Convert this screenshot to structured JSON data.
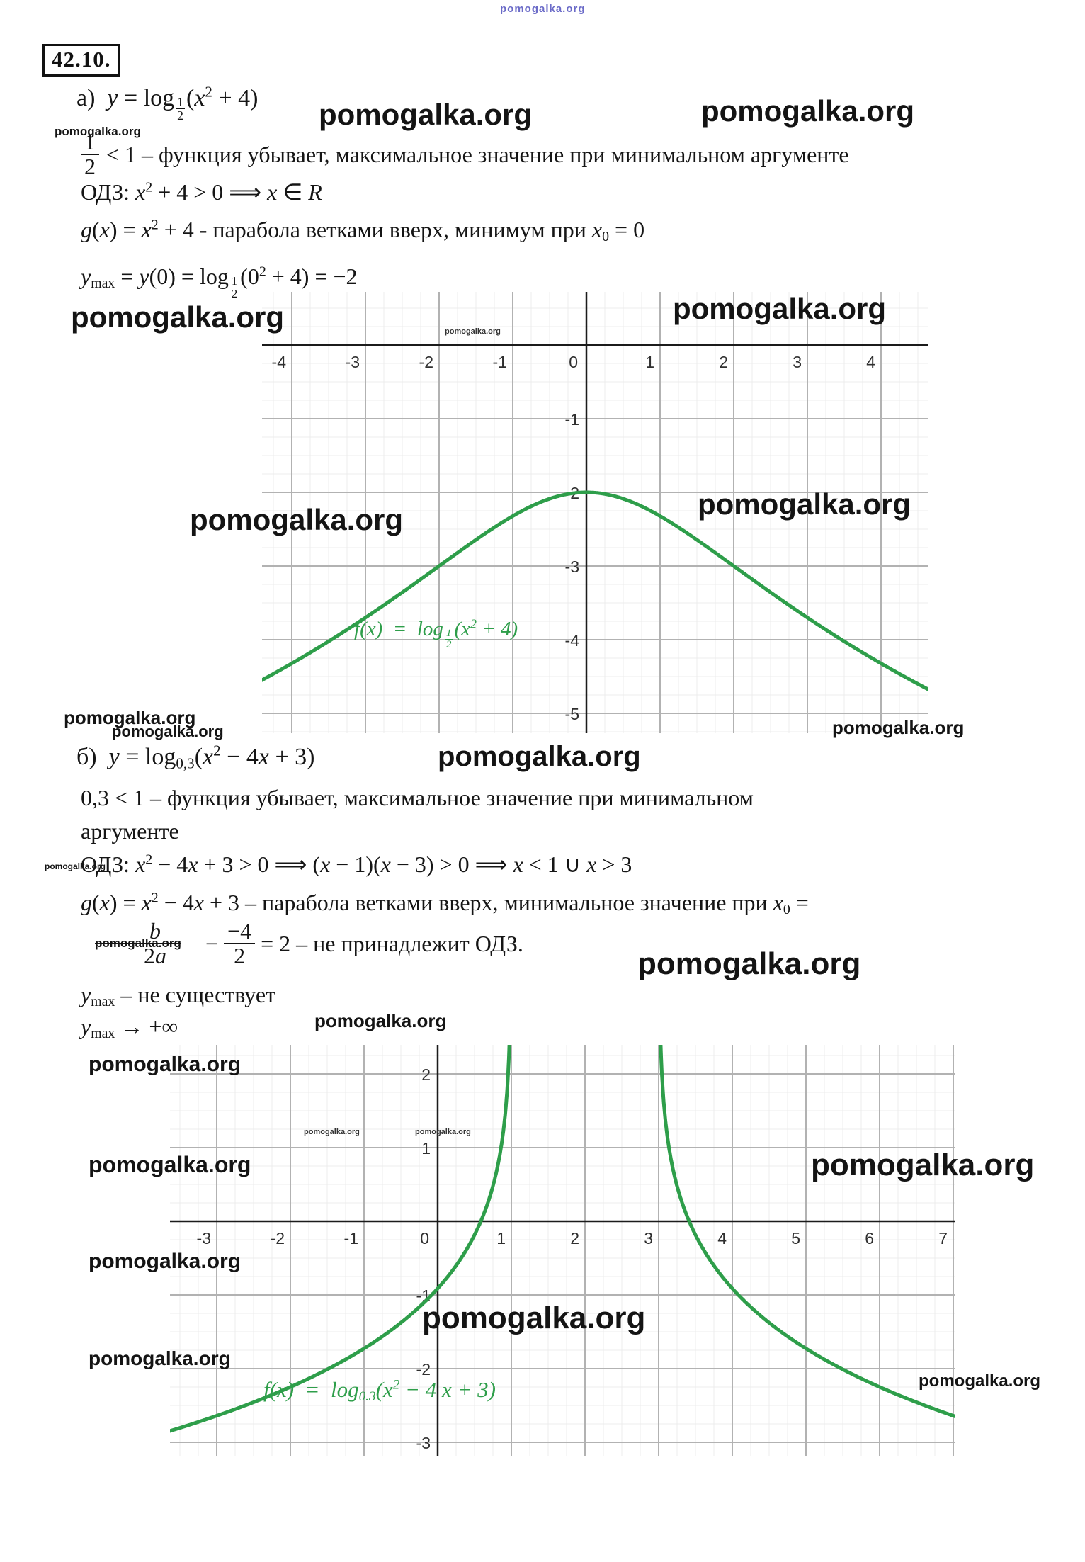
{
  "watermark": {
    "text": "pomogalka.org"
  },
  "header": {
    "problem_number": "42.10."
  },
  "section_a": {
    "equation_html": "а)&nbsp;&nbsp;<i>y</i> = log<span class=\"frac fsub\"><span class=\"top\">1</span><span class=\"bot\">2</span></span>(<i>x</i><sup>2</sup> + 4)",
    "condition_html": "&lt; 1 – функция убывает, максимальное значение при минимальном аргументе",
    "condition_frac": {
      "numerator": "1",
      "denominator": "2"
    },
    "odz_html": "ОДЗ: <i>x</i><sup>2</sup> + 4 &gt; 0 ⟹ <i>x</i> ∈ <i>R</i>",
    "g_html": "<i>g</i>(<i>x</i>) = <i>x</i><sup>2</sup> + 4 - парабола ветками вверх, минимум при <i>x</i><sub>0</sub> = 0",
    "ymax_html": "<i>y</i><sub>max</sub> = <i>y</i>(0) = log<span class=\"frac fsub\"><span class=\"top\">1</span><span class=\"bot\">2</span></span>(0<sup>2</sup> + 4) = −2"
  },
  "section_b": {
    "equation_html": "б)&nbsp;&nbsp;<i>y</i> = log<sub>0,3</sub>(<i>x</i><sup>2</sup> − 4<i>x</i> + 3)",
    "condition1_html": "0,3 &lt; 1 – функция убывает, максимальное значение при минимальном",
    "condition2_html": "аргументе",
    "odz_html": "ОДЗ: <i>x</i><sup>2</sup> − 4<i>x</i> + 3 &gt; 0 ⟹ (<i>x</i> − 1)(<i>x</i> − 3) &gt; 0 ⟹ <i>x</i> &lt; 1 ∪ <i>x</i> &gt; 3",
    "g_html": "<i>g</i>(<i>x</i>) = <i>x</i><sup>2</sup> − 4<i>x</i> + 3 – парабола ветками вверх, минимальное значение при <i>x</i><sub>0</sub> =",
    "x0_frac_html": "<span class=\"frac\"><span class=\"top\"><i>b</i></span><span class=\"bot\">2<i>a</i></span></span>",
    "x0_rest_html": "−&nbsp;<span class=\"frac\"><span class=\"top\">−4</span><span class=\"bot\">2</span></span>&nbsp;= 2 – не принадлежит ОДЗ.",
    "ymax1_html": "<i>y</i><sub>max</sub> – не существует",
    "ymax2_html": "<i>y</i><sub>max</sub> → +∞"
  },
  "chart_data": [
    {
      "type": "line",
      "title": "f(x) = log_(1/2)(x^2 + 4)",
      "label_html": "<i>f</i>(<i>x</i>) &nbsp;=&nbsp; log<span class=\"frac fsub\"><span class=\"top\">1</span><span class=\"bot\">2</span></span>(<i>x</i><sup>2</sup> + 4)",
      "color": "#2e9e4a",
      "grid": true,
      "x_range": [
        -4.4,
        4.64
      ],
      "y_range": [
        -5.27,
        0.72
      ],
      "x_ticks": [
        -4,
        -3,
        -2,
        -1,
        0,
        1,
        2,
        3,
        4
      ],
      "y_ticks": [
        -1,
        -2,
        -3,
        -4,
        -5
      ],
      "maximum_point": [
        0,
        -2
      ],
      "series": [
        {
          "name": "log_{1/2}(x^2+4)",
          "log_base": 0.5,
          "quad": [
            1,
            0,
            4
          ],
          "x_from": -4.42,
          "x_to": 4.64
        }
      ]
    },
    {
      "type": "line",
      "title": "f(x) = log_0.3(x^2 - 4x + 3)",
      "label_html": "<i>f</i>(<i>x</i>) &nbsp;=&nbsp; log<sub>0.3</sub>(<i>x</i><sup>2</sup> − 4 <i>x</i> + 3)",
      "color": "#2e9e4a",
      "grid": true,
      "x_range": [
        -3.63,
        7.02
      ],
      "y_range": [
        -3.18,
        2.39
      ],
      "x_ticks": [
        -3,
        -2,
        -1,
        0,
        1,
        2,
        3,
        4,
        5,
        6,
        7
      ],
      "y_ticks": [
        2,
        1,
        -1,
        -2,
        -3
      ],
      "vertical_asymptotes": [
        1,
        3
      ],
      "zeros": [
        0.586,
        3.414
      ],
      "series": [
        {
          "name": "left branch",
          "log_base": 0.3,
          "quad": [
            1,
            -4,
            3
          ],
          "x_from": -3.66,
          "x_to": 0.9995
        },
        {
          "name": "right branch",
          "log_base": 0.3,
          "quad": [
            1,
            -4,
            3
          ],
          "x_from": 3.0005,
          "x_to": 7.03
        }
      ]
    }
  ]
}
